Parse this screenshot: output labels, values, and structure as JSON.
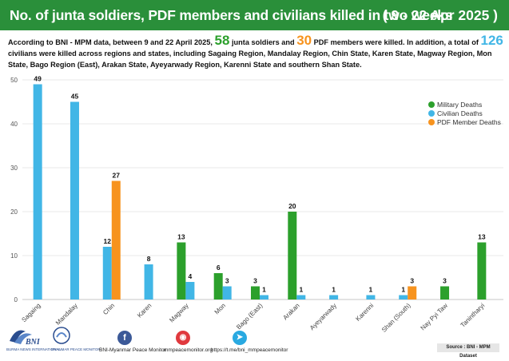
{
  "header": {
    "title": "No. of junta soldiers, PDF members and civilians killed in two weeks",
    "date_range": "( 9 - 22 Apr 2025 )"
  },
  "intro": {
    "part1": "According to BNI - MPM data, between 9 and 22 April 2025,",
    "junta_count": "58",
    "part2": "junta soldiers and",
    "pdf_count": "30",
    "part3": "PDF members were killed. In addition, a total of",
    "civilian_count": "126",
    "part4": "civilians were killed across regions and states, including Sagaing Region, Mandalay Region, Chin State, Karen State, Magway Region, Mon State, Bago Region (East), Arakan State, Ayeyarwady Region, Karenni State and southern Shan State."
  },
  "colors": {
    "military": "#2ca02c",
    "civilian": "#41b6e6",
    "pdf": "#f7931e",
    "banner": "#2a8f3a"
  },
  "chart_data": {
    "type": "bar",
    "categories": [
      "Sagaing",
      "Mandalay",
      "Chin",
      "Karen",
      "Magway",
      "Mon",
      "Bago (East)",
      "Arakan",
      "Ayeyarwady",
      "Karenni",
      "Shan (South)",
      "Nay Pyi Taw",
      "Tanintharyi"
    ],
    "series": [
      {
        "name": "Military Deaths",
        "values": [
          null,
          null,
          null,
          null,
          13,
          6,
          3,
          20,
          null,
          null,
          null,
          3,
          13
        ]
      },
      {
        "name": "Civilian Deaths",
        "values": [
          49,
          45,
          12,
          8,
          4,
          3,
          1,
          1,
          1,
          1,
          1,
          null,
          null
        ]
      },
      {
        "name": "PDF Member Deaths",
        "values": [
          null,
          null,
          27,
          null,
          null,
          null,
          null,
          null,
          null,
          null,
          3,
          null,
          null
        ]
      }
    ],
    "ylim": [
      0,
      50
    ],
    "yticks": [
      0,
      10,
      20,
      30,
      40,
      50
    ],
    "grid": true,
    "legend_position": "top-right"
  },
  "footer": {
    "bni_logo_text": "BNI",
    "bni_logo_sub": "BURMA NEWS INTERNATIONAL",
    "mpm_logo_sub": "MYANMAR PEACE MONITOR",
    "facebook_label": "BNI-Myanmar Peace Monitor",
    "website_label": "mmpeacemonitor.org",
    "telegram_label": "https://t.me/bni_mmpeacemonitor",
    "source": "Source : BNI - MPM Dataset"
  }
}
